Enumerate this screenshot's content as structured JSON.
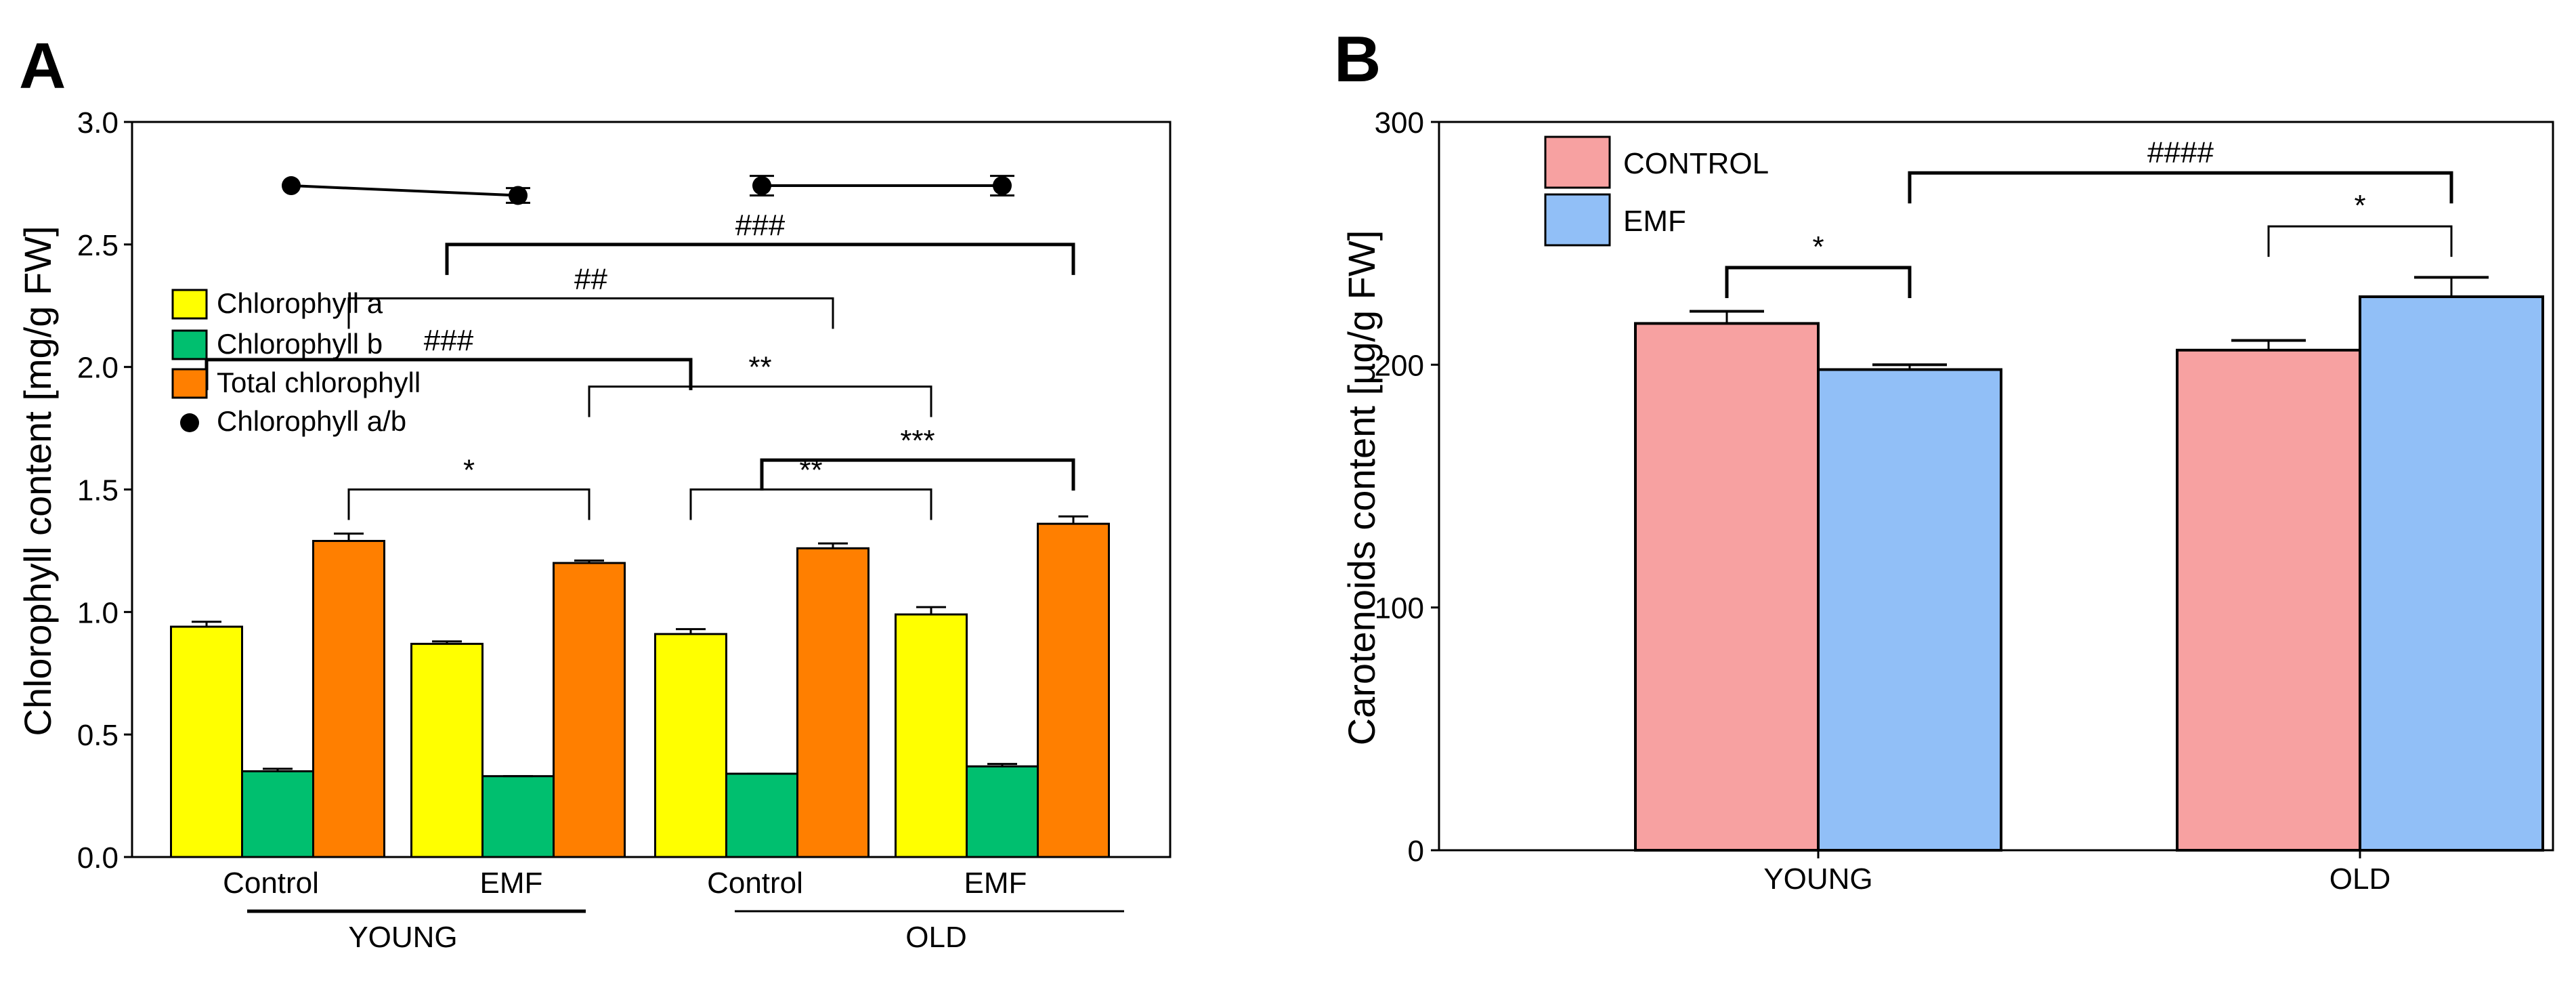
{
  "colors": {
    "chl_a": "#FFFF00",
    "chl_b": "#00BF6F",
    "total": "#FF7F00",
    "ratio": "#000000",
    "control": "#F7A1A1",
    "emf": "#91BFF7"
  },
  "chart_data": [
    {
      "panel_label": "A",
      "type": "bar",
      "ylabel": "Chlorophyll content [mg/g FW]",
      "ylim": [
        0,
        3.0
      ],
      "yticks": [
        "0.0",
        "0.5",
        "1.0",
        "1.5",
        "2.0",
        "2.5",
        "3.0"
      ],
      "categories": [
        "Control",
        "EMF",
        "Control",
        "EMF"
      ],
      "groups": [
        "YOUNG",
        "OLD"
      ],
      "series": [
        {
          "name": "Chlorophyll a",
          "values": [
            0.94,
            0.87,
            0.91,
            0.99
          ],
          "errors": [
            0.02,
            0.01,
            0.02,
            0.03
          ]
        },
        {
          "name": "Chlorophyll b",
          "values": [
            0.35,
            0.33,
            0.34,
            0.37
          ],
          "errors": [
            0.01,
            0.0,
            0.0,
            0.01
          ]
        },
        {
          "name": "Total chlorophyll",
          "values": [
            1.29,
            1.2,
            1.26,
            1.36
          ],
          "errors": [
            0.03,
            0.01,
            0.02,
            0.03
          ]
        }
      ],
      "ratio_series": {
        "name": "Chlorophyll a/b",
        "values": [
          2.74,
          2.7,
          2.74,
          2.74
        ],
        "errors": [
          0.0,
          0.03,
          0.04,
          0.04
        ]
      },
      "annotations": [
        {
          "label": "*",
          "from": [
            0,
            2
          ],
          "to": [
            1,
            2
          ]
        },
        {
          "label": "###",
          "from": [
            1,
            0
          ],
          "to": [
            3,
            2
          ]
        },
        {
          "label": "##",
          "from": [
            0,
            2
          ],
          "to": [
            2,
            2
          ]
        },
        {
          "label": "###",
          "from": [
            0,
            0
          ],
          "to": [
            2,
            0
          ]
        },
        {
          "label": "**",
          "from": [
            1,
            2
          ],
          "to": [
            3,
            0
          ]
        },
        {
          "label": "***",
          "from": [
            2,
            1
          ],
          "to": [
            3,
            2
          ]
        },
        {
          "label": "**",
          "from": [
            2,
            0
          ],
          "to": [
            3,
            0
          ]
        }
      ]
    },
    {
      "panel_label": "B",
      "type": "bar",
      "ylabel": "Carotenoids content [µg/g FW]",
      "ylim": [
        0,
        300
      ],
      "yticks": [
        "0",
        "100",
        "200",
        "300"
      ],
      "categories": [
        "YOUNG",
        "OLD"
      ],
      "series": [
        {
          "name": "CONTROL",
          "values": [
            217,
            206
          ],
          "errors": [
            5,
            4
          ]
        },
        {
          "name": "EMF",
          "values": [
            198,
            228
          ],
          "errors": [
            2,
            8
          ]
        }
      ],
      "annotations": [
        {
          "label": "*",
          "group": 0
        },
        {
          "label": "*",
          "group": 1
        },
        {
          "label": "####",
          "from_group": 0,
          "to_group": 1
        }
      ]
    }
  ]
}
